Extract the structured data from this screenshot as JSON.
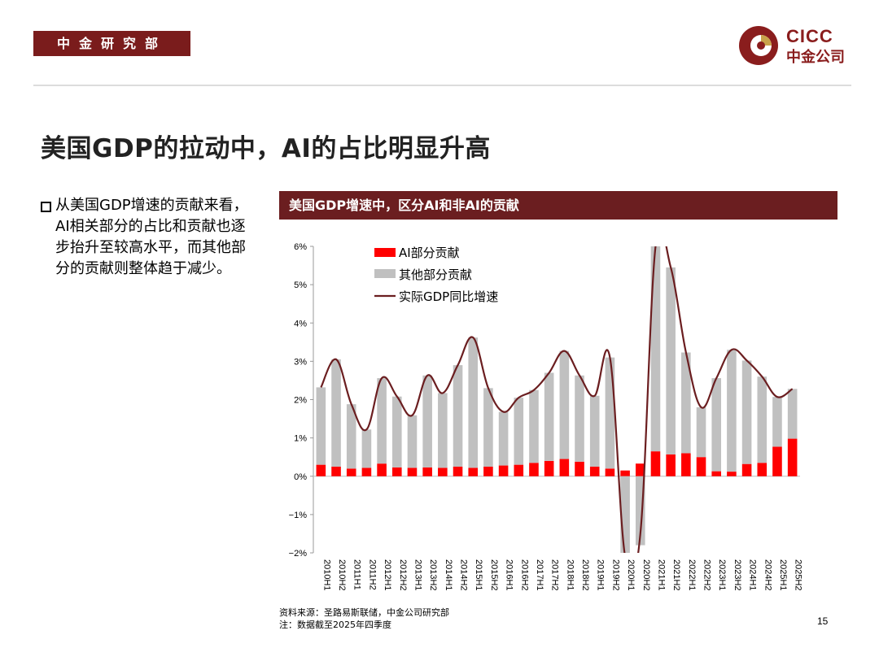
{
  "header": {
    "department": "中金研究部",
    "logo_en": "CICC",
    "logo_cn": "中金公司",
    "brand_color": "#7a1c1c"
  },
  "title": "美国GDP的拉动中，AI的占比明显升高",
  "bullet": "从美国GDP增速的贡献来看，AI相关部分的占比和贡献也逐步抬升至较高水平，而其他部分的贡献则整体趋于减少。",
  "chart_title": "美国GDP增速中，区分AI和非AI的贡献",
  "chart_data": {
    "type": "bar",
    "stacked": true,
    "categories": [
      "2010H1",
      "2010H2",
      "2011H1",
      "2011H2",
      "2012H1",
      "2012H2",
      "2013H1",
      "2013H2",
      "2014H1",
      "2014H2",
      "2015H1",
      "2015H2",
      "2016H1",
      "2016H2",
      "2017H1",
      "2017H2",
      "2018H1",
      "2018H2",
      "2019H1",
      "2019H2",
      "2020H1",
      "2020H2",
      "2021H1",
      "2021H2",
      "2022H1",
      "2022H2",
      "2023H1",
      "2023H2",
      "2024H1",
      "2024H2",
      "2025H1",
      "2025H2"
    ],
    "series": [
      {
        "name": "AI部分贡献",
        "type": "bar",
        "color": "#ff0000",
        "values": [
          0.3,
          0.25,
          0.2,
          0.22,
          0.33,
          0.23,
          0.22,
          0.23,
          0.22,
          0.25,
          0.22,
          0.25,
          0.28,
          0.3,
          0.35,
          0.4,
          0.45,
          0.38,
          0.25,
          0.2,
          0.15,
          0.33,
          0.65,
          0.57,
          0.6,
          0.5,
          0.13,
          0.12,
          0.32,
          0.35,
          0.77,
          0.98
        ]
      },
      {
        "name": "其他部分贡献",
        "type": "bar",
        "color": "#c0c0c0",
        "values": [
          2.02,
          2.8,
          1.68,
          1.0,
          2.23,
          1.85,
          1.37,
          2.4,
          1.95,
          2.65,
          3.4,
          2.05,
          1.4,
          1.75,
          1.9,
          2.3,
          2.82,
          2.25,
          1.85,
          2.9,
          -2.2,
          -1.8,
          5.35,
          4.88,
          2.63,
          1.3,
          2.43,
          3.18,
          2.7,
          2.25,
          1.3,
          1.3
        ]
      },
      {
        "name": "实际GDP同比增速",
        "type": "line",
        "color": "#6b1e20",
        "values": [
          2.32,
          3.05,
          1.88,
          1.22,
          2.56,
          2.08,
          1.59,
          2.63,
          2.17,
          2.9,
          3.62,
          2.3,
          1.68,
          2.05,
          2.25,
          2.7,
          3.27,
          2.63,
          2.1,
          3.1,
          -2.1,
          -1.5,
          6.0,
          5.45,
          3.23,
          1.8,
          2.56,
          3.3,
          3.02,
          2.6,
          2.07,
          2.28
        ]
      }
    ],
    "ylim": [
      -2,
      6
    ],
    "yticks": [
      "−2%",
      "−1%",
      "0%",
      "1%",
      "2%",
      "3%",
      "4%",
      "5%",
      "6%"
    ],
    "legend": "top-left"
  },
  "source_line1": "资料来源：圣路易斯联储，中金公司研究部",
  "source_line2": "注：数据截至2025年四季度",
  "page_number": "15"
}
